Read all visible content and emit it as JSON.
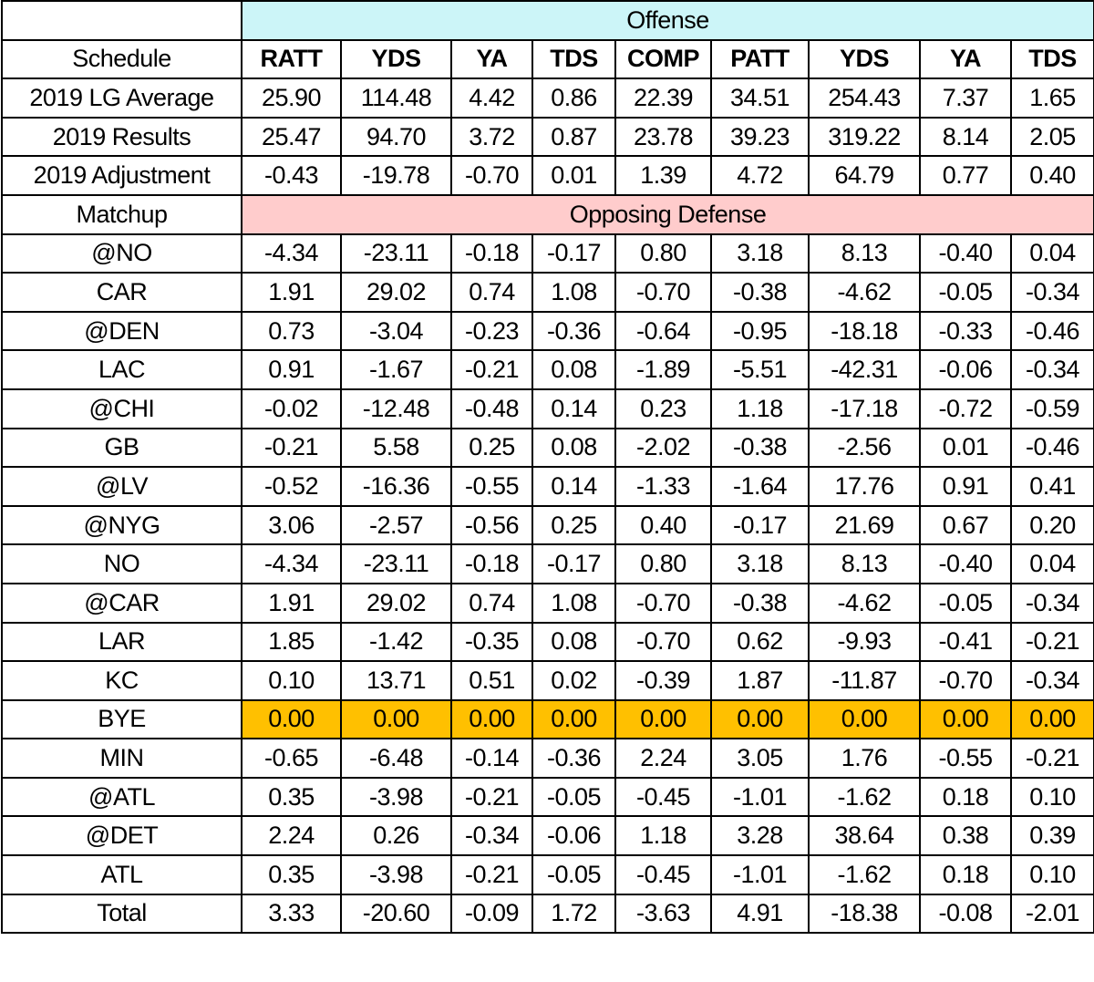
{
  "bands": {
    "offense": "Offense",
    "matchup_label": "Matchup",
    "defense": "Opposing Defense"
  },
  "header": {
    "label": "Schedule",
    "columns": [
      "RATT",
      "YDS",
      "YA",
      "TDS",
      "COMP",
      "PATT",
      "YDS",
      "YA",
      "TDS"
    ]
  },
  "summary_rows": [
    {
      "label": "2019 LG Average",
      "values": [
        "25.90",
        "114.48",
        "4.42",
        "0.86",
        "22.39",
        "34.51",
        "254.43",
        "7.37",
        "1.65"
      ]
    },
    {
      "label": "2019 Results",
      "values": [
        "25.47",
        "94.70",
        "3.72",
        "0.87",
        "23.78",
        "39.23",
        "319.22",
        "8.14",
        "2.05"
      ]
    },
    {
      "label": "2019 Adjustment",
      "values": [
        "-0.43",
        "-19.78",
        "-0.70",
        "0.01",
        "1.39",
        "4.72",
        "64.79",
        "0.77",
        "0.40"
      ]
    }
  ],
  "matchups": [
    {
      "label": "@NO",
      "values": [
        "-4.34",
        "-23.11",
        "-0.18",
        "-0.17",
        "0.80",
        "3.18",
        "8.13",
        "-0.40",
        "0.04"
      ]
    },
    {
      "label": "CAR",
      "values": [
        "1.91",
        "29.02",
        "0.74",
        "1.08",
        "-0.70",
        "-0.38",
        "-4.62",
        "-0.05",
        "-0.34"
      ]
    },
    {
      "label": "@DEN",
      "values": [
        "0.73",
        "-3.04",
        "-0.23",
        "-0.36",
        "-0.64",
        "-0.95",
        "-18.18",
        "-0.33",
        "-0.46"
      ]
    },
    {
      "label": "LAC",
      "values": [
        "0.91",
        "-1.67",
        "-0.21",
        "0.08",
        "-1.89",
        "-5.51",
        "-42.31",
        "-0.06",
        "-0.34"
      ]
    },
    {
      "label": "@CHI",
      "values": [
        "-0.02",
        "-12.48",
        "-0.48",
        "0.14",
        "0.23",
        "1.18",
        "-17.18",
        "-0.72",
        "-0.59"
      ]
    },
    {
      "label": "GB",
      "values": [
        "-0.21",
        "5.58",
        "0.25",
        "0.08",
        "-2.02",
        "-0.38",
        "-2.56",
        "0.01",
        "-0.46"
      ]
    },
    {
      "label": "@LV",
      "values": [
        "-0.52",
        "-16.36",
        "-0.55",
        "0.14",
        "-1.33",
        "-1.64",
        "17.76",
        "0.91",
        "0.41"
      ]
    },
    {
      "label": "@NYG",
      "values": [
        "3.06",
        "-2.57",
        "-0.56",
        "0.25",
        "0.40",
        "-0.17",
        "21.69",
        "0.67",
        "0.20"
      ]
    },
    {
      "label": "NO",
      "values": [
        "-4.34",
        "-23.11",
        "-0.18",
        "-0.17",
        "0.80",
        "3.18",
        "8.13",
        "-0.40",
        "0.04"
      ]
    },
    {
      "label": "@CAR",
      "values": [
        "1.91",
        "29.02",
        "0.74",
        "1.08",
        "-0.70",
        "-0.38",
        "-4.62",
        "-0.05",
        "-0.34"
      ]
    },
    {
      "label": "LAR",
      "values": [
        "1.85",
        "-1.42",
        "-0.35",
        "0.08",
        "-0.70",
        "0.62",
        "-9.93",
        "-0.41",
        "-0.21"
      ]
    },
    {
      "label": "KC",
      "values": [
        "0.10",
        "13.71",
        "0.51",
        "0.02",
        "-0.39",
        "1.87",
        "-11.87",
        "-0.70",
        "-0.34"
      ]
    },
    {
      "label": "BYE",
      "values": [
        "0.00",
        "0.00",
        "0.00",
        "0.00",
        "0.00",
        "0.00",
        "0.00",
        "0.00",
        "0.00"
      ]
    },
    {
      "label": "MIN",
      "values": [
        "-0.65",
        "-6.48",
        "-0.14",
        "-0.36",
        "2.24",
        "3.05",
        "1.76",
        "-0.55",
        "-0.21"
      ]
    },
    {
      "label": "@ATL",
      "values": [
        "0.35",
        "-3.98",
        "-0.21",
        "-0.05",
        "-0.45",
        "-1.01",
        "-1.62",
        "0.18",
        "0.10"
      ]
    },
    {
      "label": "@DET",
      "values": [
        "2.24",
        "0.26",
        "-0.34",
        "-0.06",
        "1.18",
        "3.28",
        "38.64",
        "0.38",
        "0.39"
      ]
    },
    {
      "label": "ATL",
      "values": [
        "0.35",
        "-3.98",
        "-0.21",
        "-0.05",
        "-0.45",
        "-1.01",
        "-1.62",
        "0.18",
        "0.10"
      ]
    },
    {
      "label": "Total",
      "values": [
        "3.33",
        "-20.60",
        "-0.09",
        "1.72",
        "-3.63",
        "4.91",
        "-18.38",
        "-0.08",
        "-2.01"
      ]
    }
  ],
  "colors": {
    "offense_band": "#ccf5f8",
    "defense_band": "#ffcccc",
    "bye_highlight": "#ffc000"
  }
}
